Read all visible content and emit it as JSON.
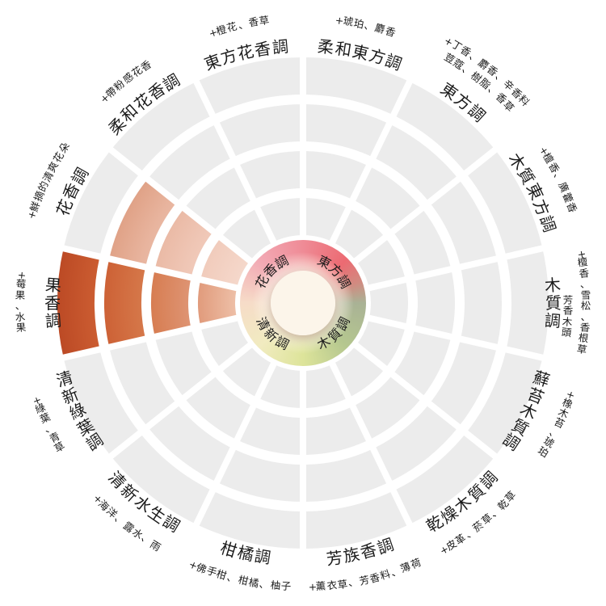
{
  "chart_data": {
    "type": "polar-wheel",
    "title": "fragrance wheel (香調輪)",
    "rings_per_sector": 4,
    "max_value": 4,
    "sector_angle_deg": 25.714,
    "center_categories": [
      {
        "label": "花香調",
        "angle_deg": 135
      },
      {
        "label": "東方調",
        "angle_deg": 45
      },
      {
        "label": "木質調",
        "angle_deg": -45
      },
      {
        "label": "清新調",
        "angle_deg": -135
      }
    ],
    "sectors": [
      {
        "label": "花香調",
        "descriptors": [
          "+鮮摘的清爽花朵"
        ],
        "angle_deg": 154.29,
        "value": 3,
        "palette": "floral",
        "label_style": "row-top"
      },
      {
        "label": "柔和花香調",
        "descriptors": [
          "+帶粉感花香"
        ],
        "angle_deg": 128.57,
        "value": 0,
        "palette": "",
        "label_style": "row-top"
      },
      {
        "label": "東方花香調",
        "descriptors": [
          "+橙花、香草"
        ],
        "angle_deg": 102.86,
        "value": 0,
        "palette": "",
        "label_style": "row-top"
      },
      {
        "label": "柔和東方調",
        "descriptors": [
          "+琥珀、麝香"
        ],
        "angle_deg": 77.14,
        "value": 0,
        "palette": "",
        "label_style": "row-top"
      },
      {
        "label": "東方調",
        "descriptors": [
          "+丁香、麝香、辛香料",
          "荳蔻、樹脂、香草"
        ],
        "angle_deg": 51.43,
        "value": 0,
        "palette": "",
        "label_style": "row-top"
      },
      {
        "label": "木質東方調",
        "descriptors": [
          "+檀香、廣藿香"
        ],
        "angle_deg": 25.71,
        "value": 0,
        "palette": "",
        "label_style": "row-top"
      },
      {
        "label": "木質調",
        "descriptors": [
          "+檀香、雪松、香根草",
          "芳香木頭"
        ],
        "angle_deg": 0,
        "value": 0,
        "palette": "",
        "label_style": "vert-right"
      },
      {
        "label": "蘚苔木質調",
        "descriptors": [
          "+橡木苔、琥珀"
        ],
        "angle_deg": -25.71,
        "value": 0,
        "palette": "",
        "label_style": "vert-right"
      },
      {
        "label": "乾燥木質調",
        "descriptors": [
          "+皮革、菸草、乾草"
        ],
        "angle_deg": -51.43,
        "value": 0,
        "palette": "",
        "label_style": "row-bottom"
      },
      {
        "label": "芳族香調",
        "descriptors": [
          "+薰衣草、芳香料、薄荷"
        ],
        "angle_deg": -77.14,
        "value": 0,
        "palette": "",
        "label_style": "row-bottom"
      },
      {
        "label": "柑橘調",
        "descriptors": [
          "+佛手柑、柑橘、柚子"
        ],
        "angle_deg": -102.86,
        "value": 0,
        "palette": "",
        "label_style": "row-bottom"
      },
      {
        "label": "清新水生調",
        "descriptors": [
          "+海洋、露水、雨"
        ],
        "angle_deg": -128.57,
        "value": 0,
        "palette": "",
        "label_style": "row-bottom"
      },
      {
        "label": "清新綠葉調",
        "descriptors": [
          "+綠葉、青草"
        ],
        "angle_deg": -154.29,
        "value": 0,
        "palette": "",
        "label_style": "vert-left"
      },
      {
        "label": "果香調",
        "descriptors": [
          "+莓果、水果"
        ],
        "angle_deg": 180,
        "value": 4,
        "palette": "fruity",
        "label_style": "vert-left"
      }
    ],
    "palettes": {
      "empty_segment_color": "#ececec",
      "fruity_gradient": [
        [
          0.27,
          "#eec0a8"
        ],
        [
          0.45,
          "#df9676"
        ],
        [
          0.66,
          "#d57749"
        ],
        [
          0.85,
          "#cb5c31"
        ],
        [
          1,
          "#bc4a25"
        ]
      ],
      "floral_gradient": [
        [
          0.27,
          "#f5d8cb"
        ],
        [
          0.5,
          "#efc6b5"
        ],
        [
          0.68,
          "#e8b49e"
        ],
        [
          0.81,
          "#e0a287"
        ]
      ]
    },
    "center_wheel_conic_colors": [
      [
        0,
        "#ef8b96"
      ],
      [
        45,
        "#ec6a72"
      ],
      [
        70,
        "#d18b81"
      ],
      [
        90,
        "#a9b295"
      ],
      [
        135,
        "#b5c78f"
      ],
      [
        180,
        "#dde49a"
      ],
      [
        225,
        "#f1ebc0"
      ],
      [
        270,
        "#f6dcc8"
      ],
      [
        315,
        "#f2a9b4"
      ],
      [
        360,
        "#ef8b96"
      ]
    ],
    "center_circle_color": "#fcf5ea",
    "colors": {
      "background": "#ffffff",
      "text": "#1b1b1b",
      "divider": "#ffffff"
    }
  }
}
